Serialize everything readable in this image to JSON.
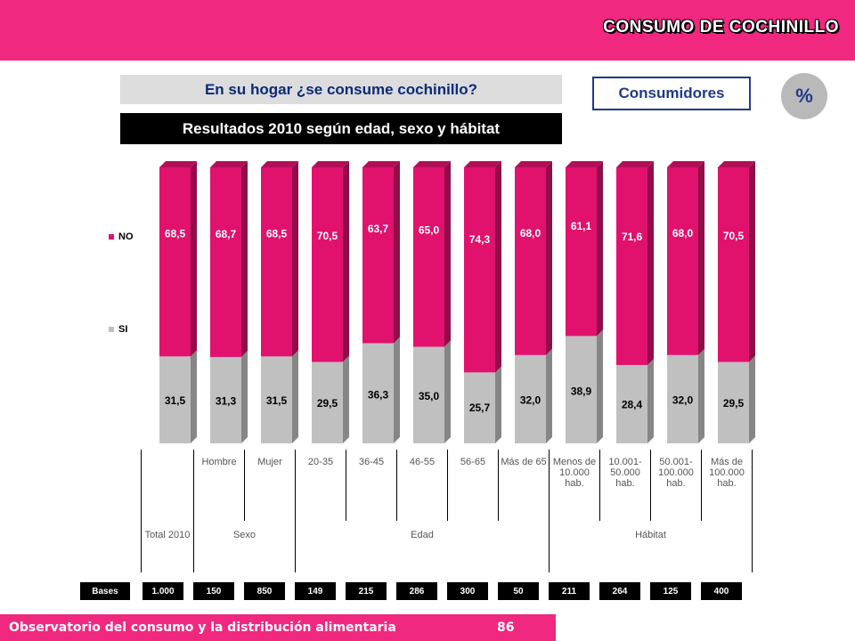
{
  "header": {
    "section_title": "CONSUMO DE COCHINILLO"
  },
  "question": "En su hogar ¿se consume cochinillo?",
  "subtitle": "Resultados 2010 según edad, sexo y hábitat",
  "consumidores_label": "Consumidores",
  "percent_badge": "%",
  "colors": {
    "no": "#e0126e",
    "si": "#c0c0c0",
    "brand": "#f0287f"
  },
  "chart_data": {
    "type": "bar",
    "stacked": true,
    "categories": [
      "Total 2010",
      "Hombre",
      "Mujer",
      "20-35",
      "36-45",
      "46-55",
      "56-65",
      "Más de 65",
      "Menos de 10.000 hab.",
      "10.001-50.000 hab.",
      "50.001-100.000 hab.",
      "Más de 100.000 hab."
    ],
    "series": [
      {
        "name": "SI",
        "values": [
          31.5,
          31.3,
          31.5,
          29.5,
          36.3,
          35.0,
          25.7,
          32.0,
          38.9,
          28.4,
          32.0,
          29.5
        ],
        "labels": [
          "31,5",
          "31,3",
          "31,5",
          "29,5",
          "36,3",
          "35,0",
          "25,7",
          "32,0",
          "38,9",
          "28,4",
          "32,0",
          "29,5"
        ]
      },
      {
        "name": "NO",
        "values": [
          68.5,
          68.7,
          68.5,
          70.5,
          63.7,
          65.0,
          74.3,
          68.0,
          61.1,
          71.6,
          68.0,
          70.5
        ],
        "labels": [
          "68,5",
          "68,7",
          "68,5",
          "70,5",
          "63,7",
          "65,0",
          "74,3",
          "68,0",
          "61,1",
          "71,6",
          "68,0",
          "70,5"
        ]
      }
    ],
    "ylim": [
      0,
      100
    ],
    "legend": "left"
  },
  "categories_table": {
    "row1": [
      "",
      "Hombre",
      "Mujer",
      "20-35",
      "36-45",
      "46-55",
      "56-65",
      "Más de 65",
      "Menos de 10.000 hab.",
      "10.001-50.000 hab.",
      "50.001-100.000 hab.",
      "Más de 100.000 hab."
    ],
    "groups": {
      "total": "Total 2010",
      "sexo": "Sexo",
      "edad": "Edad",
      "habitat": "Hábitat"
    }
  },
  "bases": {
    "label": "Bases",
    "values": [
      "1.000",
      "150",
      "850",
      "149",
      "215",
      "286",
      "300",
      "50",
      "211",
      "264",
      "125",
      "400"
    ]
  },
  "footer": {
    "text": "Observatorio del consumo y la distribución alimentaria",
    "page": "86"
  }
}
